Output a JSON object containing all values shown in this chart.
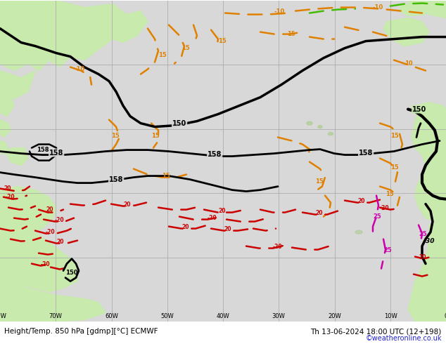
{
  "title_left": "Height/Temp. 850 hPa [gdmp][°C] ECMWF",
  "title_right": "Th 13-06-2024 18:00 UTC (12+198)",
  "copyright": "©weatheronline.co.uk",
  "ocean_color": "#d8d8d8",
  "land_color_light": "#c8eaac",
  "land_color_dark": "#a8cc88",
  "figsize": [
    6.34,
    4.9
  ],
  "dpi": 100,
  "bottom_bar_color": "#c8c8e8",
  "title_fontsize": 7.5,
  "copyright_fontsize": 7,
  "copyright_color": "#2222cc",
  "grid_color": "#aaaaaa",
  "black": "#000000",
  "orange": "#e08000",
  "red": "#cc0000",
  "green": "#44bb00",
  "magenta": "#cc00aa"
}
